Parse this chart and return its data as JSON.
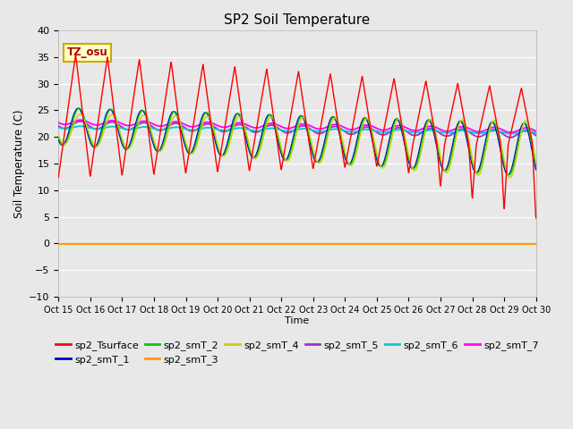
{
  "title": "SP2 Soil Temperature",
  "xlabel": "Time",
  "ylabel": "Soil Temperature (C)",
  "ylim": [
    -10,
    40
  ],
  "yticks": [
    -10,
    -5,
    0,
    5,
    10,
    15,
    20,
    25,
    30,
    35,
    40
  ],
  "xtick_labels": [
    "Oct 15",
    "Oct 16",
    "Oct 17",
    "Oct 18",
    "Oct 19",
    "Oct 20",
    "Oct 21",
    "Oct 22",
    "Oct 23",
    "Oct 24",
    "Oct 25",
    "Oct 26",
    "Oct 27",
    "Oct 28",
    "Oct 29",
    "Oct 30"
  ],
  "bg_color": "#e8e8e8",
  "plot_bg": "#e8e8e8",
  "timezone_label": "TZ_osu",
  "series_colors": {
    "sp2_Tsurface": "#ff0000",
    "sp2_smT_1": "#0000cc",
    "sp2_smT_2": "#00cc00",
    "sp2_smT_3": "#ff9900",
    "sp2_smT_4": "#cccc00",
    "sp2_smT_5": "#9933cc",
    "sp2_smT_6": "#00cccc",
    "sp2_smT_7": "#ff00ff"
  },
  "legend_order": [
    "sp2_Tsurface",
    "sp2_smT_1",
    "sp2_smT_2",
    "sp2_smT_3",
    "sp2_smT_4",
    "sp2_smT_5",
    "sp2_smT_6",
    "sp2_smT_7"
  ]
}
